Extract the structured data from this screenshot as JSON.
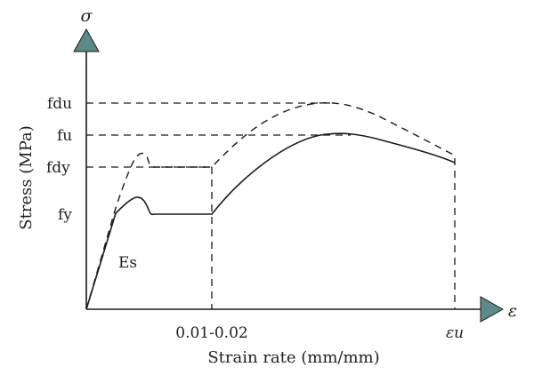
{
  "axes": {
    "y_symbol": "σ",
    "x_symbol": "ε",
    "y_label": "Stress (MPa)",
    "x_label": "Strain rate (mm/mm)"
  },
  "y_ticks": {
    "fdu": "fdu",
    "fu": "fu",
    "fdy": "fdy",
    "fy": "fy"
  },
  "x_ticks": {
    "mid": "0.01-0.02",
    "end": "εu"
  },
  "annotations": {
    "modulus": "Es"
  },
  "legend_style": {
    "static_curve": "solid",
    "dynamic_curve": "dashed"
  },
  "colors": {
    "arrow_fill": "#5d8a88",
    "line": "#1a1a1a"
  }
}
